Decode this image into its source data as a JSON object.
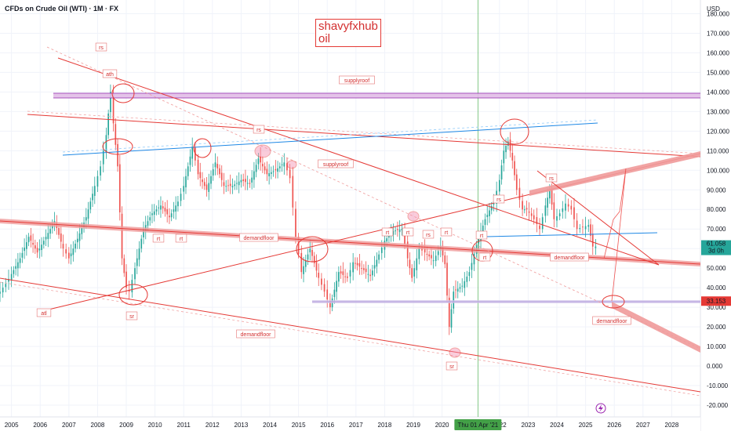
{
  "header": {
    "symbol_title": "CFDs on Crude Oil (WTI) · 1M · FX",
    "currency": "USD"
  },
  "brand": {
    "line1": "shavyfxhub",
    "line2": "oil"
  },
  "price_badge": {
    "value": "61.058",
    "countdown": "3d 0h",
    "color": "#26a69a"
  },
  "level_badge": {
    "value": "33.153",
    "color": "#e53935"
  },
  "crosshair": {
    "date_label": "Thu 01 Apr '21"
  },
  "icons": {
    "lightning": "lightning-icon"
  },
  "chart_data": {
    "type": "candlestick",
    "x_ticks": [
      "2005",
      "2006",
      "2007",
      "2008",
      "2009",
      "2010",
      "2011",
      "2012",
      "2013",
      "2014",
      "2015",
      "2016",
      "2017",
      "2018",
      "2019",
      "2020",
      "2022",
      "2023",
      "2024",
      "2025",
      "2026",
      "2027",
      "2028"
    ],
    "xlim": [
      2004.6,
      2029.0
    ],
    "y_ticks": [
      "180.000",
      "170.000",
      "160.000",
      "150.000",
      "140.000",
      "130.000",
      "120.000",
      "110.000",
      "100.000",
      "90.000",
      "80.000",
      "70.000",
      "60.000",
      "50.000",
      "40.000",
      "30.000",
      "20.000",
      "10.000",
      "0.000",
      "-10.000",
      "-20.000"
    ],
    "ylim": [
      -22,
      187
    ],
    "monthly_close": [
      [
        2004.6,
        38
      ],
      [
        2004.8,
        42
      ],
      [
        2005.0,
        47
      ],
      [
        2005.3,
        55
      ],
      [
        2005.6,
        66
      ],
      [
        2005.9,
        58
      ],
      [
        2006.2,
        66
      ],
      [
        2006.5,
        74
      ],
      [
        2006.8,
        60
      ],
      [
        2007.0,
        55
      ],
      [
        2007.3,
        65
      ],
      [
        2007.6,
        76
      ],
      [
        2007.9,
        92
      ],
      [
        2008.1,
        102
      ],
      [
        2008.3,
        118
      ],
      [
        2008.45,
        140
      ],
      [
        2008.55,
        124
      ],
      [
        2008.7,
        102
      ],
      [
        2008.85,
        55
      ],
      [
        2009.0,
        40
      ],
      [
        2009.1,
        38
      ],
      [
        2009.3,
        50
      ],
      [
        2009.6,
        70
      ],
      [
        2009.9,
        78
      ],
      [
        2010.2,
        82
      ],
      [
        2010.5,
        76
      ],
      [
        2010.8,
        84
      ],
      [
        2011.0,
        92
      ],
      [
        2011.3,
        112
      ],
      [
        2011.5,
        98
      ],
      [
        2011.8,
        90
      ],
      [
        2012.1,
        104
      ],
      [
        2012.4,
        92
      ],
      [
        2012.7,
        92
      ],
      [
        2013.0,
        95
      ],
      [
        2013.3,
        93
      ],
      [
        2013.6,
        106
      ],
      [
        2013.9,
        98
      ],
      [
        2014.2,
        100
      ],
      [
        2014.5,
        104
      ],
      [
        2014.7,
        96
      ],
      [
        2014.9,
        66
      ],
      [
        2015.1,
        48
      ],
      [
        2015.4,
        60
      ],
      [
        2015.7,
        45
      ],
      [
        2015.9,
        38
      ],
      [
        2016.1,
        30
      ],
      [
        2016.4,
        48
      ],
      [
        2016.7,
        45
      ],
      [
        2016.9,
        53
      ],
      [
        2017.2,
        50
      ],
      [
        2017.5,
        46
      ],
      [
        2017.8,
        57
      ],
      [
        2018.0,
        64
      ],
      [
        2018.3,
        69
      ],
      [
        2018.6,
        70
      ],
      [
        2018.8,
        55
      ],
      [
        2018.95,
        45
      ],
      [
        2019.2,
        60
      ],
      [
        2019.4,
        58
      ],
      [
        2019.7,
        54
      ],
      [
        2019.95,
        61
      ],
      [
        2020.1,
        52
      ],
      [
        2020.25,
        20
      ],
      [
        2020.4,
        38
      ],
      [
        2020.7,
        41
      ],
      [
        2020.95,
        48
      ],
      [
        2021.2,
        62
      ],
      [
        2021.5,
        75
      ],
      [
        2021.8,
        84
      ],
      [
        2022.0,
        95
      ],
      [
        2022.15,
        110
      ],
      [
        2022.3,
        115
      ],
      [
        2022.45,
        105
      ],
      [
        2022.6,
        90
      ],
      [
        2022.8,
        80
      ],
      [
        2022.95,
        80
      ],
      [
        2023.2,
        75
      ],
      [
        2023.4,
        70
      ],
      [
        2023.6,
        82
      ],
      [
        2023.75,
        90
      ],
      [
        2023.9,
        75
      ],
      [
        2024.1,
        78
      ],
      [
        2024.3,
        83
      ],
      [
        2024.5,
        80
      ],
      [
        2024.7,
        70
      ],
      [
        2024.9,
        71
      ],
      [
        2025.1,
        72
      ],
      [
        2025.25,
        61
      ],
      [
        2025.35,
        61.06
      ]
    ],
    "annotations": [
      "supplyroof",
      "supplyroof",
      "demandfloor",
      "demandfloor",
      "demandfloor",
      "demandfloor",
      "atl",
      "sr",
      "sr",
      "sr",
      "rs",
      "rs",
      "rt",
      "rt",
      "rt",
      "rt",
      "rt",
      "rt",
      "rs",
      "rs",
      "rt",
      "ath"
    ],
    "grid": true,
    "legend": "none"
  }
}
